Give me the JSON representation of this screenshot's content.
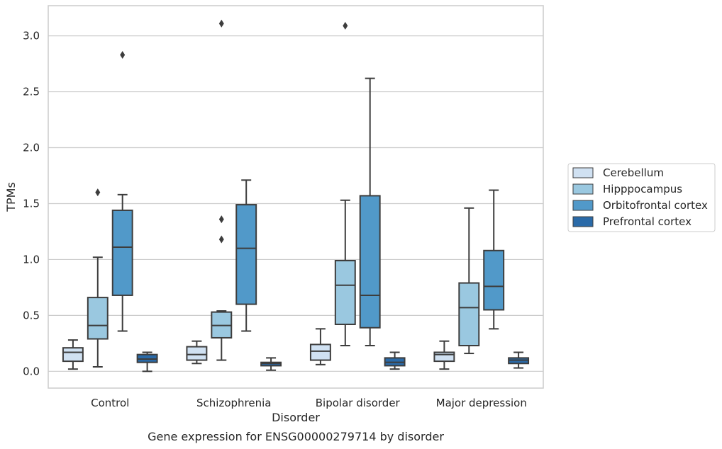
{
  "caption": "Gene expression for ENSG00000279714 by disorder",
  "chart_data": {
    "type": "box",
    "xlabel": "Disorder",
    "ylabel": "TPMs",
    "ylim": [
      -0.15,
      3.27
    ],
    "y_ticks": [
      "0.0",
      "0.5",
      "1.0",
      "1.5",
      "2.0",
      "2.5",
      "3.0"
    ],
    "categories": [
      "Control",
      "Schizophrenia",
      "Bipolar disorder",
      "Major depression"
    ],
    "grid": "horizontal",
    "legend_position": "right",
    "series": [
      {
        "name": "Cerebellum",
        "color": "#d0e1f2",
        "boxes": [
          {
            "whisker_low": 0.02,
            "q1": 0.09,
            "median": 0.17,
            "q3": 0.21,
            "whisker_high": 0.28,
            "outliers": []
          },
          {
            "whisker_low": 0.07,
            "q1": 0.1,
            "median": 0.15,
            "q3": 0.22,
            "whisker_high": 0.27,
            "outliers": []
          },
          {
            "whisker_low": 0.06,
            "q1": 0.1,
            "median": 0.18,
            "q3": 0.24,
            "whisker_high": 0.38,
            "outliers": []
          },
          {
            "whisker_low": 0.02,
            "q1": 0.09,
            "median": 0.15,
            "q3": 0.17,
            "whisker_high": 0.27,
            "outliers": []
          }
        ]
      },
      {
        "name": "Hipppocampus",
        "color": "#9ac8e0",
        "boxes": [
          {
            "whisker_low": 0.04,
            "q1": 0.29,
            "median": 0.41,
            "q3": 0.66,
            "whisker_high": 1.02,
            "outliers": [
              1.6
            ]
          },
          {
            "whisker_low": 0.1,
            "q1": 0.3,
            "median": 0.41,
            "q3": 0.53,
            "whisker_high": 0.54,
            "outliers": [
              1.18,
              1.36,
              3.11
            ]
          },
          {
            "whisker_low": 0.23,
            "q1": 0.42,
            "median": 0.77,
            "q3": 0.99,
            "whisker_high": 1.53,
            "outliers": [
              3.09
            ]
          },
          {
            "whisker_low": 0.16,
            "q1": 0.23,
            "median": 0.57,
            "q3": 0.79,
            "whisker_high": 1.46,
            "outliers": []
          }
        ]
      },
      {
        "name": "Orbitofrontal cortex",
        "color": "#5199c9",
        "boxes": [
          {
            "whisker_low": 0.36,
            "q1": 0.68,
            "median": 1.11,
            "q3": 1.44,
            "whisker_high": 1.58,
            "outliers": [
              2.83
            ]
          },
          {
            "whisker_low": 0.36,
            "q1": 0.6,
            "median": 1.1,
            "q3": 1.49,
            "whisker_high": 1.71,
            "outliers": []
          },
          {
            "whisker_low": 0.23,
            "q1": 0.39,
            "median": 0.68,
            "q3": 1.57,
            "whisker_high": 2.62,
            "outliers": []
          },
          {
            "whisker_low": 0.38,
            "q1": 0.55,
            "median": 0.76,
            "q3": 1.08,
            "whisker_high": 1.62,
            "outliers": []
          }
        ]
      },
      {
        "name": "Prefrontal cortex",
        "color": "#2a6aa8",
        "boxes": [
          {
            "whisker_low": 0.0,
            "q1": 0.08,
            "median": 0.11,
            "q3": 0.15,
            "whisker_high": 0.17,
            "outliers": []
          },
          {
            "whisker_low": 0.01,
            "q1": 0.05,
            "median": 0.07,
            "q3": 0.08,
            "whisker_high": 0.12,
            "outliers": []
          },
          {
            "whisker_low": 0.02,
            "q1": 0.05,
            "median": 0.08,
            "q3": 0.12,
            "whisker_high": 0.17,
            "outliers": []
          },
          {
            "whisker_low": 0.03,
            "q1": 0.07,
            "median": 0.1,
            "q3": 0.12,
            "whisker_high": 0.17,
            "outliers": []
          }
        ]
      }
    ]
  }
}
